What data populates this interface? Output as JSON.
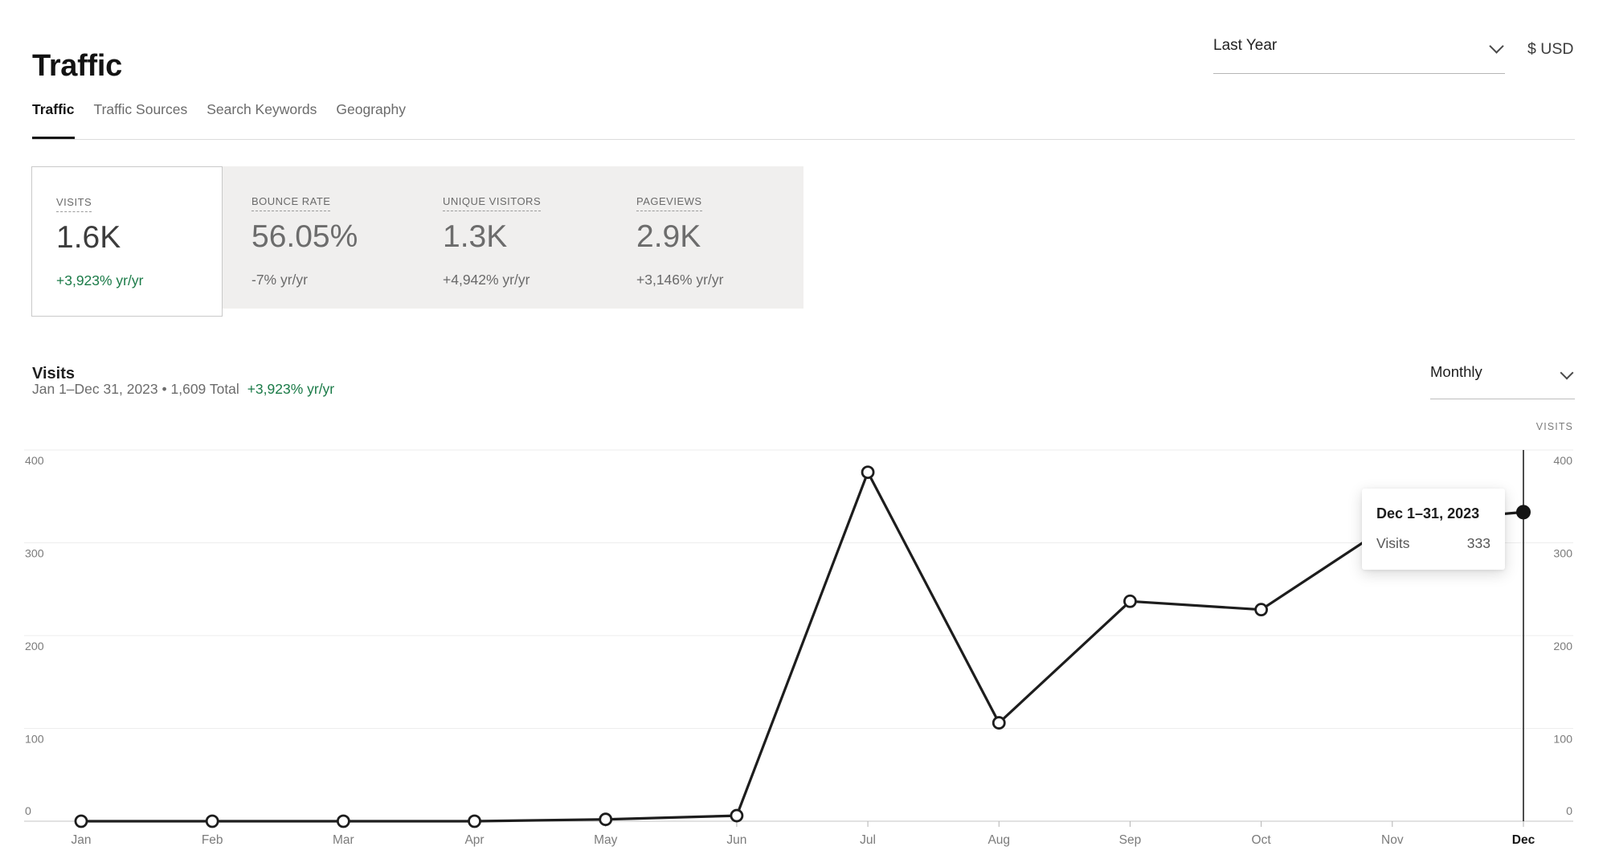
{
  "header": {
    "title": "Traffic",
    "period": "Last Year",
    "currency": "$ USD"
  },
  "tabs": [
    {
      "label": "Traffic",
      "active": true
    },
    {
      "label": "Traffic Sources",
      "active": false
    },
    {
      "label": "Search Keywords",
      "active": false
    },
    {
      "label": "Geography",
      "active": false
    }
  ],
  "stats": [
    {
      "label": "VISITS",
      "value": "1.6K",
      "delta": "+3,923% yr/yr",
      "selected": true
    },
    {
      "label": "BOUNCE RATE",
      "value": "56.05%",
      "delta": "-7% yr/yr",
      "selected": false
    },
    {
      "label": "UNIQUE VISITORS",
      "value": "1.3K",
      "delta": "+4,942% yr/yr",
      "selected": false
    },
    {
      "label": "PAGEVIEWS",
      "value": "2.9K",
      "delta": "+3,146% yr/yr",
      "selected": false
    }
  ],
  "section": {
    "title": "Visits",
    "summary": "Jan 1–Dec 31, 2023 • 1,609 Total",
    "delta": "+3,923% yr/yr",
    "granularity": "Monthly",
    "axis_caption": "VISITS"
  },
  "tooltip": {
    "title": "Dec 1–31, 2023",
    "label": "Visits",
    "value": "333"
  },
  "chart_data": {
    "type": "line",
    "title": "Visits",
    "series": [
      {
        "name": "Visits",
        "values": [
          0,
          0,
          0,
          0,
          2,
          6,
          376,
          106,
          237,
          228,
          321,
          333
        ]
      }
    ],
    "categories": [
      "Jan",
      "Feb",
      "Mar",
      "Apr",
      "May",
      "Jun",
      "Jul",
      "Aug",
      "Sep",
      "Oct",
      "Nov",
      "Dec"
    ],
    "total": 1609,
    "highlight_index": 11,
    "highlight_label": "Dec 1–31, 2023",
    "highlight_value": 333,
    "ylim": [
      0,
      400
    ],
    "yticks": [
      0,
      100,
      200,
      300,
      400
    ],
    "grid": true,
    "legend_position": "none",
    "line_color": "#1d1d1d",
    "grid_color": "#ededed",
    "axis_line_color": "#c6c6c6",
    "tick_label_color": "#7b7b7b",
    "highlight_tick_color": "#151515",
    "accent_green": "#1a7a47"
  }
}
